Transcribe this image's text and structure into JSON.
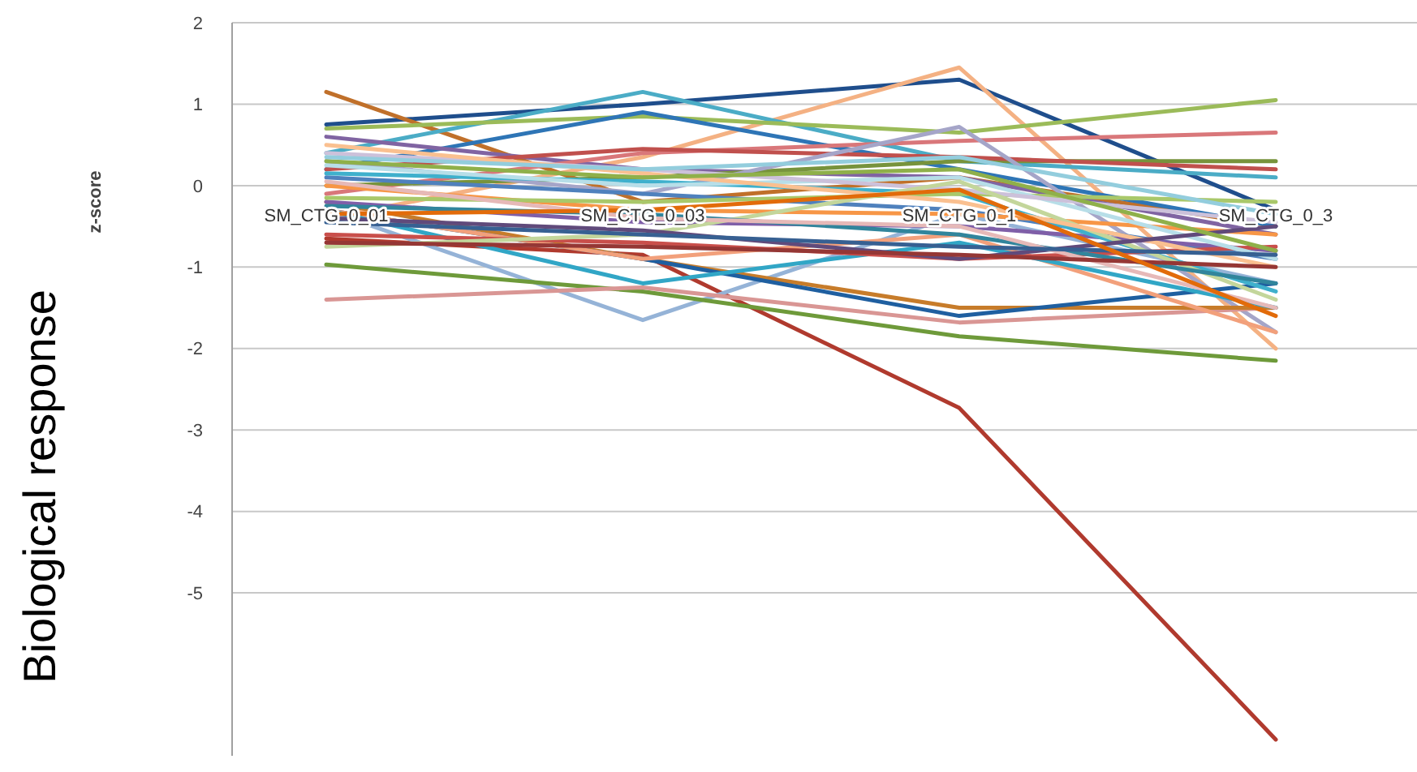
{
  "chart_data": {
    "type": "line",
    "ylabel": "z-score",
    "annotations": [
      "Biological response"
    ],
    "categories": [
      "SM_CTG_0_01",
      "SM_CTG_0_03",
      "SM_CTG_0_1",
      "SM_CTG_0_3"
    ],
    "ylim": [
      -7,
      2
    ],
    "yticks": [
      -5,
      -4,
      -3,
      -2,
      -1,
      0,
      1,
      2
    ],
    "grid": "y",
    "series": [
      {
        "color": "#1f4e8c",
        "values": [
          0.75,
          1.0,
          1.3,
          -0.3
        ]
      },
      {
        "color": "#f4b183",
        "values": [
          -0.4,
          0.35,
          1.45,
          -2.0
        ]
      },
      {
        "color": "#c0702a",
        "values": [
          1.15,
          -0.2,
          0.1,
          -0.5
        ]
      },
      {
        "color": "#4bacc6",
        "values": [
          0.4,
          1.15,
          0.3,
          0.1
        ]
      },
      {
        "color": "#9bbb59",
        "values": [
          0.7,
          0.85,
          0.65,
          1.05
        ]
      },
      {
        "color": "#2e75b6",
        "values": [
          0.2,
          0.9,
          0.2,
          -0.5
        ]
      },
      {
        "color": "#8064a2",
        "values": [
          0.6,
          0.2,
          0.1,
          -0.6
        ]
      },
      {
        "color": "#d9777a",
        "values": [
          -0.1,
          0.4,
          0.55,
          0.65
        ]
      },
      {
        "color": "#77933c",
        "values": [
          0.0,
          0.1,
          0.3,
          0.3
        ]
      },
      {
        "color": "#c0504d",
        "values": [
          0.2,
          0.45,
          0.35,
          0.2
        ]
      },
      {
        "color": "#b03a2e",
        "values": [
          -0.65,
          -0.85,
          -2.73,
          -6.8
        ]
      },
      {
        "color": "#95b3d7",
        "values": [
          -0.3,
          -1.65,
          -0.35,
          -1.2
        ]
      },
      {
        "color": "#a5a5c8",
        "values": [
          0.3,
          -0.1,
          0.72,
          -1.8
        ]
      },
      {
        "color": "#6e9a3a",
        "values": [
          -0.97,
          -1.3,
          -1.85,
          -2.15
        ]
      },
      {
        "color": "#d99694",
        "values": [
          -1.4,
          -1.25,
          -1.68,
          -1.5
        ]
      },
      {
        "color": "#c77c2a",
        "values": [
          -0.2,
          -0.9,
          -1.5,
          -1.5
        ]
      },
      {
        "color": "#1f5fa0",
        "values": [
          -0.3,
          -0.9,
          -1.6,
          -1.2
        ]
      },
      {
        "color": "#f2a07b",
        "values": [
          -0.3,
          -0.9,
          -0.6,
          -1.8
        ]
      },
      {
        "color": "#31a6c6",
        "values": [
          -0.3,
          -1.2,
          -0.7,
          -1.5
        ]
      },
      {
        "color": "#4f81bd",
        "values": [
          0.1,
          -0.1,
          -0.3,
          -0.9
        ]
      },
      {
        "color": "#f79646",
        "values": [
          0.0,
          -0.3,
          -0.35,
          -0.6
        ]
      },
      {
        "color": "#7f5fa8",
        "values": [
          -0.2,
          -0.45,
          -0.5,
          -0.8
        ]
      },
      {
        "color": "#3fb0cc",
        "values": [
          0.15,
          0.05,
          -0.1,
          -1.3
        ]
      },
      {
        "color": "#a9c86a",
        "values": [
          -0.15,
          -0.2,
          -0.1,
          -0.2
        ]
      },
      {
        "color": "#c94f4b",
        "values": [
          -0.6,
          -0.7,
          -0.9,
          -0.75
        ]
      },
      {
        "color": "#b7dee8",
        "values": [
          0.25,
          0.0,
          0.1,
          -0.9
        ]
      },
      {
        "color": "#ccc1da",
        "values": [
          0.4,
          0.2,
          -0.05,
          -0.45
        ]
      },
      {
        "color": "#c3d69b",
        "values": [
          -0.75,
          -0.6,
          0.05,
          -1.4
        ]
      },
      {
        "color": "#fac090",
        "values": [
          0.5,
          0.15,
          -0.2,
          -1.0
        ]
      },
      {
        "color": "#604a7b",
        "values": [
          -0.4,
          -0.55,
          -0.9,
          -0.5
        ]
      },
      {
        "color": "#31859c",
        "values": [
          -0.25,
          -0.35,
          -0.6,
          -1.2
        ]
      },
      {
        "color": "#e6b9b8",
        "values": [
          0.05,
          -0.4,
          -0.5,
          -1.5
        ]
      },
      {
        "color": "#953735",
        "values": [
          -0.7,
          -0.75,
          -0.85,
          -1.0
        ]
      },
      {
        "color": "#8fb04a",
        "values": [
          0.3,
          0.1,
          0.2,
          -0.8
        ]
      },
      {
        "color": "#376092",
        "values": [
          -0.45,
          -0.6,
          -0.75,
          -0.85
        ]
      },
      {
        "color": "#93cddd",
        "values": [
          0.35,
          0.2,
          0.35,
          -0.35
        ]
      },
      {
        "color": "#e26b0a",
        "values": [
          -0.35,
          -0.3,
          -0.05,
          -1.6
        ]
      }
    ]
  }
}
